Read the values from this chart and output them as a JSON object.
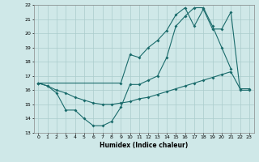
{
  "xlabel": "Humidex (Indice chaleur)",
  "bg_color": "#cfe8e8",
  "grid_color": "#aacccc",
  "line_color": "#1a6b6b",
  "xlim": [
    -0.5,
    23.5
  ],
  "ylim": [
    13,
    22
  ],
  "yticks": [
    13,
    14,
    15,
    16,
    17,
    18,
    19,
    20,
    21,
    22
  ],
  "xticks": [
    0,
    1,
    2,
    3,
    4,
    5,
    6,
    7,
    8,
    9,
    10,
    11,
    12,
    13,
    14,
    15,
    16,
    17,
    18,
    19,
    20,
    21,
    22,
    23
  ],
  "series1_x": [
    0,
    1,
    2,
    3,
    4,
    5,
    6,
    7,
    8,
    9,
    10,
    11,
    12,
    13,
    14,
    15,
    16,
    17,
    18,
    19,
    20,
    21
  ],
  "series1_y": [
    16.5,
    16.3,
    15.8,
    14.6,
    14.6,
    14.0,
    13.5,
    13.5,
    13.8,
    14.8,
    16.4,
    16.4,
    16.7,
    17.0,
    18.3,
    20.5,
    21.2,
    21.8,
    21.8,
    20.5,
    19.0,
    17.5
  ],
  "series2_x": [
    0,
    1,
    2,
    3,
    4,
    5,
    6,
    7,
    8,
    9,
    10,
    11,
    12,
    13,
    14,
    15,
    16,
    17,
    18,
    19,
    20,
    21,
    22,
    23
  ],
  "series2_y": [
    16.5,
    16.3,
    16.0,
    15.8,
    15.5,
    15.3,
    15.1,
    15.0,
    15.0,
    15.1,
    15.2,
    15.4,
    15.5,
    15.7,
    15.9,
    16.1,
    16.3,
    16.5,
    16.7,
    16.9,
    17.1,
    17.3,
    16.1,
    16.1
  ],
  "series3_x": [
    0,
    9,
    10,
    11,
    12,
    13,
    14,
    15,
    16,
    17,
    18,
    19,
    20,
    21,
    22,
    23
  ],
  "series3_y": [
    16.5,
    16.5,
    18.5,
    18.3,
    19.0,
    19.5,
    20.2,
    21.3,
    21.8,
    20.5,
    21.7,
    20.3,
    20.3,
    21.5,
    16.0,
    16.0
  ]
}
